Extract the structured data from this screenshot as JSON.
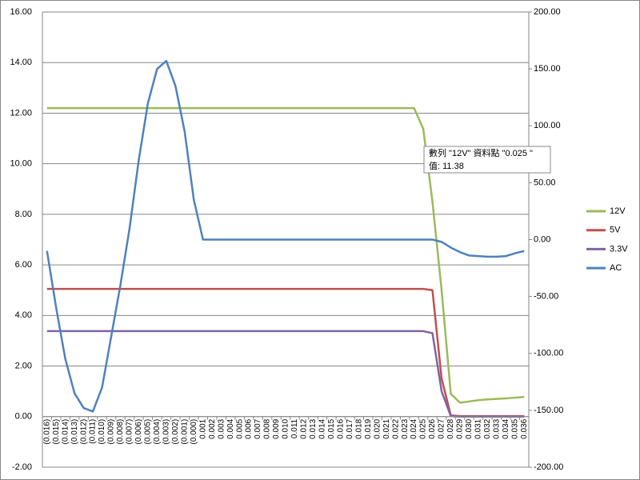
{
  "chart_data": {
    "type": "line",
    "categories": [
      "(0.016)",
      "(0.015)",
      "(0.014)",
      "(0.013)",
      "(0.012)",
      "(0.011)",
      "(0.010)",
      "(0.009)",
      "(0.008)",
      "(0.007)",
      "(0.006)",
      "(0.005)",
      "(0.004)",
      "(0.003)",
      "(0.002)",
      "(0.001)",
      "(0.000)",
      "0.001",
      "0.002",
      "0.003",
      "0.004",
      "0.005",
      "0.006",
      "0.007",
      "0.008",
      "0.009",
      "0.010",
      "0.011",
      "0.012",
      "0.013",
      "0.014",
      "0.015",
      "0.016",
      "0.017",
      "0.018",
      "0.019",
      "0.020",
      "0.021",
      "0.022",
      "0.023",
      "0.024",
      "0.025",
      "0.026",
      "0.027",
      "0.028",
      "0.029",
      "0.030",
      "0.031",
      "0.032",
      "0.033",
      "0.034",
      "0.035",
      "0.036"
    ],
    "series": [
      {
        "name": "12V",
        "color": "#9bbb59",
        "values": [
          12.2,
          12.2,
          12.2,
          12.2,
          12.2,
          12.2,
          12.2,
          12.2,
          12.2,
          12.2,
          12.2,
          12.2,
          12.2,
          12.2,
          12.2,
          12.2,
          12.2,
          12.2,
          12.2,
          12.2,
          12.2,
          12.2,
          12.2,
          12.2,
          12.2,
          12.2,
          12.2,
          12.2,
          12.2,
          12.2,
          12.2,
          12.2,
          12.2,
          12.2,
          12.2,
          12.2,
          12.2,
          12.2,
          12.2,
          12.2,
          12.2,
          11.38,
          8.5,
          5.0,
          0.9,
          0.55,
          0.6,
          0.65,
          0.68,
          0.7,
          0.72,
          0.75,
          0.78
        ]
      },
      {
        "name": "5V",
        "color": "#c0504d",
        "values": [
          5.05,
          5.05,
          5.05,
          5.05,
          5.05,
          5.05,
          5.05,
          5.05,
          5.05,
          5.05,
          5.05,
          5.05,
          5.05,
          5.05,
          5.05,
          5.05,
          5.05,
          5.05,
          5.05,
          5.05,
          5.05,
          5.05,
          5.05,
          5.05,
          5.05,
          5.05,
          5.05,
          5.05,
          5.05,
          5.05,
          5.05,
          5.05,
          5.05,
          5.05,
          5.05,
          5.05,
          5.05,
          5.05,
          5.05,
          5.05,
          5.05,
          5.05,
          5.0,
          1.5,
          0.05,
          0.02,
          0.02,
          0.02,
          0.02,
          0.02,
          0.02,
          0.02,
          0.02
        ]
      },
      {
        "name": "3.3V",
        "color": "#8064a2",
        "values": [
          3.38,
          3.38,
          3.38,
          3.38,
          3.38,
          3.38,
          3.38,
          3.38,
          3.38,
          3.38,
          3.38,
          3.38,
          3.38,
          3.38,
          3.38,
          3.38,
          3.38,
          3.38,
          3.38,
          3.38,
          3.38,
          3.38,
          3.38,
          3.38,
          3.38,
          3.38,
          3.38,
          3.38,
          3.38,
          3.38,
          3.38,
          3.38,
          3.38,
          3.38,
          3.38,
          3.38,
          3.38,
          3.38,
          3.38,
          3.38,
          3.38,
          3.38,
          3.3,
          1.0,
          0.02,
          0,
          0,
          0,
          0,
          0,
          0,
          0,
          0
        ]
      },
      {
        "name": "AC",
        "color": "#4f81bd",
        "axis": "y2",
        "values": [
          -10,
          -60,
          -105,
          -135,
          -148,
          -151,
          -130,
          -85,
          -40,
          10,
          70,
          120,
          150,
          157,
          135,
          95,
          35,
          0,
          0,
          0,
          0,
          0,
          0,
          0,
          0,
          0,
          0,
          0,
          0,
          0,
          0,
          0,
          0,
          0,
          0,
          0,
          0,
          0,
          0,
          0,
          0,
          0,
          0,
          -2,
          -7,
          -11,
          -14,
          -14.5,
          -15,
          -15,
          -14.5,
          -12,
          -10
        ]
      }
    ],
    "ylim": [
      -2,
      16
    ],
    "yticks": [
      {
        "value": -2,
        "label": "-2.00"
      },
      {
        "value": 0,
        "label": "0.00"
      },
      {
        "value": 2,
        "label": "2.00"
      },
      {
        "value": 4,
        "label": "4.00"
      },
      {
        "value": 6,
        "label": "6.00"
      },
      {
        "value": 8,
        "label": "8.00"
      },
      {
        "value": 10,
        "label": "10.00"
      },
      {
        "value": 12,
        "label": "12.00"
      },
      {
        "value": 14,
        "label": "14.00"
      },
      {
        "value": 16,
        "label": "16.00"
      }
    ],
    "y2lim": [
      -200,
      200
    ],
    "y2ticks": [
      {
        "value": -200,
        "label": "-200.00"
      },
      {
        "value": -150,
        "label": "-150.00"
      },
      {
        "value": -100,
        "label": "-100.00"
      },
      {
        "value": -50,
        "label": "-50.00"
      },
      {
        "value": 0,
        "label": "0.00"
      },
      {
        "value": 50,
        "label": "50.00"
      },
      {
        "value": 100,
        "label": "100.00"
      },
      {
        "value": 150,
        "label": "150.00"
      },
      {
        "value": 200,
        "label": "200.00"
      }
    ],
    "grid": true,
    "legend": "right",
    "tooltip": [
      "數列 \"12V\" 資料點 \"0.025 \"",
      "值: 11.38"
    ]
  }
}
